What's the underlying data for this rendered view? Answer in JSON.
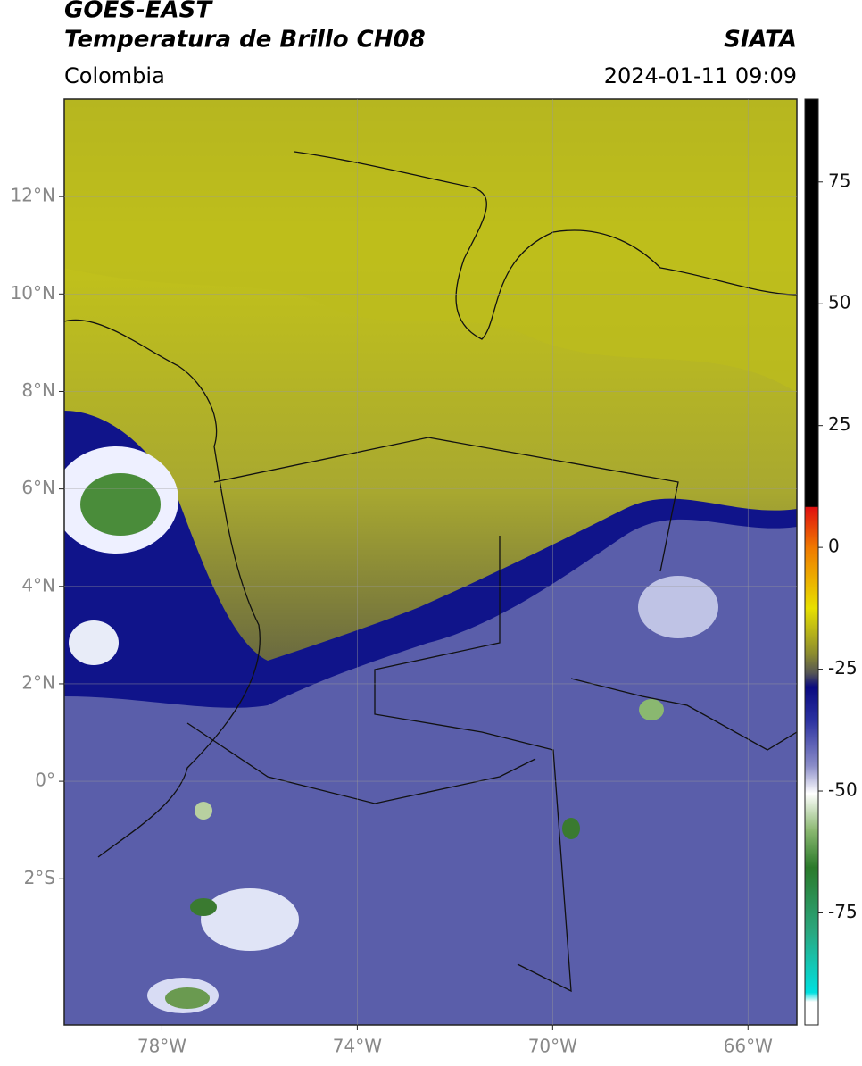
{
  "header": {
    "title": "GOES-EAST",
    "subtitle": "Temperatura de Brillo CH08",
    "source": "SIATA",
    "region": "Colombia",
    "datetime": "2024-01-11 09:09"
  },
  "map": {
    "xlim": [
      -80,
      -65
    ],
    "ylim": [
      -5,
      14
    ],
    "xticks": [
      {
        "value": -78,
        "label": "78°W"
      },
      {
        "value": -74,
        "label": "74°W"
      },
      {
        "value": -70,
        "label": "70°W"
      },
      {
        "value": -66,
        "label": "66°W"
      }
    ],
    "yticks": [
      {
        "value": 12,
        "label": "12°N"
      },
      {
        "value": 10,
        "label": "10°N"
      },
      {
        "value": 8,
        "label": "8°N"
      },
      {
        "value": 6,
        "label": "6°N"
      },
      {
        "value": 4,
        "label": "4°N"
      },
      {
        "value": 2,
        "label": "2°N"
      },
      {
        "value": 0,
        "label": "0°"
      },
      {
        "value": -2,
        "label": "2°S"
      }
    ],
    "grid": true
  },
  "colorbar": {
    "lim": [
      -98,
      92
    ],
    "ticks": [
      75,
      50,
      25,
      0,
      -25,
      -50,
      -75
    ]
  }
}
